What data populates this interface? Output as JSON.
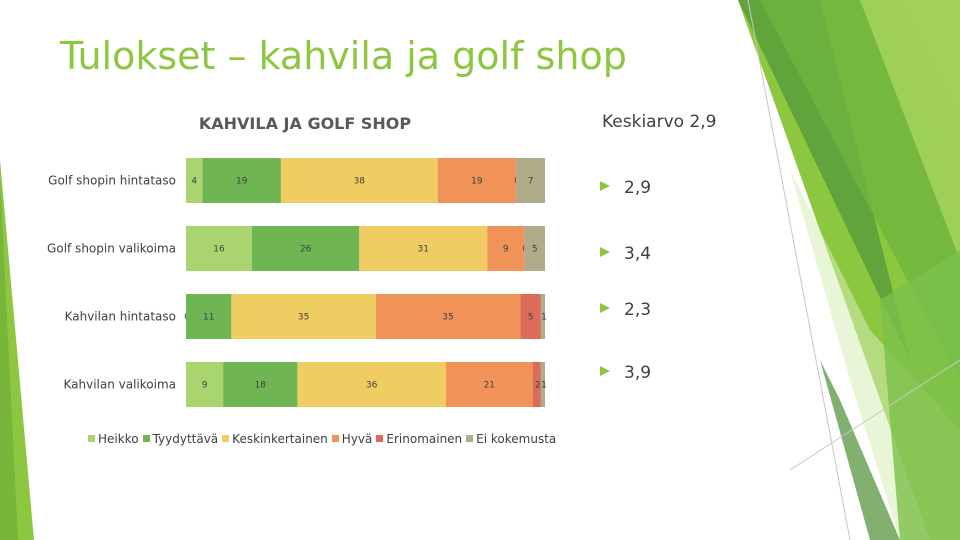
{
  "slide": {
    "title": "Tulokset – kahvila ja golf shop"
  },
  "chart_data": {
    "type": "bar",
    "orientation": "horizontal",
    "stacked": true,
    "title": "KAHVILA JA GOLF SHOP",
    "categories": [
      "Golf shopin hintataso",
      "Golf shopin valikoima",
      "Kahvilan hintataso",
      "Kahvilan valikoima"
    ],
    "series": [
      {
        "name": "Heikko",
        "color": "#a9d46f",
        "values": [
          4,
          16,
          0,
          9
        ]
      },
      {
        "name": "Tyydyttävä",
        "color": "#70b554",
        "values": [
          19,
          26,
          11,
          18
        ]
      },
      {
        "name": "Keskinkertainen",
        "color": "#f0cd62",
        "values": [
          38,
          31,
          35,
          36
        ]
      },
      {
        "name": "Hyvä",
        "color": "#ef9359",
        "values": [
          19,
          9,
          35,
          21
        ]
      },
      {
        "name": "Erinomainen",
        "color": "#dd6b5a",
        "values": [
          0,
          0,
          5,
          2
        ]
      },
      {
        "name": "Ei kokemusta",
        "color": "#b0ab88",
        "values": [
          7,
          5,
          1,
          1
        ]
      }
    ],
    "legend_position": "bottom",
    "grid": false
  },
  "averages": {
    "header": "Keskiarvo 2,9",
    "items": [
      "2,9",
      "3,4",
      "2,3",
      "3,9"
    ],
    "bullet_color": "#8dc63f"
  },
  "theme": {
    "title_color": "#8dc63f",
    "text_color": "#404040"
  }
}
